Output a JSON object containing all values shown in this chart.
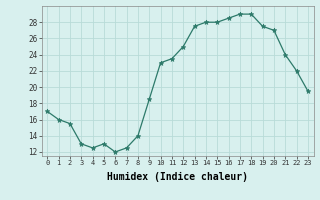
{
  "x": [
    0,
    1,
    2,
    3,
    4,
    5,
    6,
    7,
    8,
    9,
    10,
    11,
    12,
    13,
    14,
    15,
    16,
    17,
    18,
    19,
    20,
    21,
    22,
    23
  ],
  "y": [
    17,
    16,
    15.5,
    13,
    12.5,
    13,
    12,
    12.5,
    14,
    18.5,
    23,
    23.5,
    25,
    27.5,
    28,
    28,
    28.5,
    29,
    29,
    27.5,
    27,
    24,
    22,
    19.5
  ],
  "line_color": "#2d7a6a",
  "marker": "*",
  "marker_size": 3.5,
  "bg_color": "#d8f0ee",
  "grid_color": "#b8dbd8",
  "xlabel": "Humidex (Indice chaleur)",
  "xlabel_fontsize": 7,
  "ylabel_ticks": [
    12,
    14,
    16,
    18,
    20,
    22,
    24,
    26,
    28
  ],
  "xtick_labels": [
    "0",
    "1",
    "2",
    "3",
    "4",
    "5",
    "6",
    "7",
    "8",
    "9",
    "10",
    "11",
    "12",
    "13",
    "14",
    "15",
    "16",
    "17",
    "18",
    "19",
    "20",
    "21",
    "22",
    "23"
  ],
  "ylim": [
    11.5,
    30.0
  ],
  "xlim": [
    -0.5,
    23.5
  ]
}
